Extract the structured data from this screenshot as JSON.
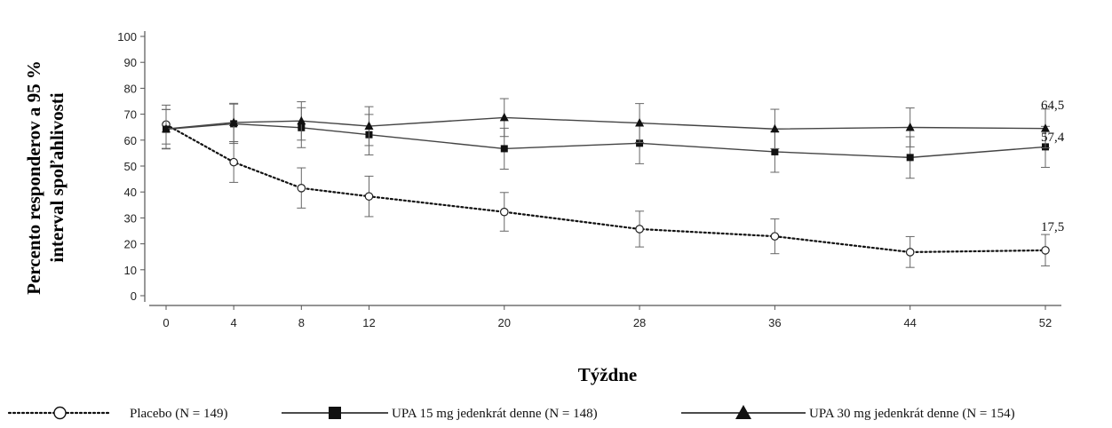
{
  "chart_data": {
    "type": "line",
    "title": "",
    "xlabel": "Týždne",
    "ylabel_line1": "Percento responderov a 95 %",
    "ylabel_line2": "interval spoľahlivosti",
    "x": [
      0,
      4,
      8,
      12,
      20,
      28,
      36,
      44,
      52
    ],
    "x_ticks": [
      "0",
      "4",
      "8",
      "12",
      "20",
      "28",
      "36",
      "44",
      "52"
    ],
    "y_ticks": [
      "0",
      "10",
      "20",
      "30",
      "40",
      "50",
      "60",
      "70",
      "80",
      "90",
      "100"
    ],
    "ylim": [
      0,
      100
    ],
    "grid": false,
    "legend_position": "bottom",
    "series": [
      {
        "name": "Placebo (N = 149)",
        "marker": "open-circle",
        "line_style": "dotted",
        "values": [
          66.0,
          51.5,
          41.5,
          38.3,
          32.3,
          25.7,
          22.9,
          16.8,
          17.5
        ],
        "ci_lower": [
          58.5,
          43.7,
          33.8,
          30.5,
          24.9,
          18.8,
          16.2,
          10.9,
          11.5
        ],
        "ci_upper": [
          73.5,
          59.4,
          49.3,
          46.1,
          39.8,
          32.6,
          29.6,
          22.8,
          23.6
        ],
        "end_label": "17,5"
      },
      {
        "name": "UPA 15 mg jedenkrát denne (N = 148)",
        "marker": "filled-square",
        "line_style": "solid",
        "values": [
          64.2,
          66.3,
          64.8,
          62.1,
          56.7,
          58.8,
          55.5,
          53.3,
          57.4
        ],
        "ci_lower": [
          56.6,
          58.7,
          57.1,
          54.3,
          48.8,
          50.9,
          47.6,
          45.3,
          49.5
        ],
        "ci_upper": [
          71.8,
          73.9,
          72.5,
          69.9,
          64.6,
          66.7,
          63.4,
          61.3,
          65.3
        ],
        "end_label": "57,4"
      },
      {
        "name": "UPA 30 mg jedenkrát denne (N = 154)",
        "marker": "filled-triangle",
        "line_style": "solid",
        "values": [
          64.3,
          66.8,
          67.4,
          65.4,
          68.7,
          66.6,
          64.3,
          64.9,
          64.5
        ],
        "ci_lower": [
          56.8,
          59.4,
          60.0,
          57.9,
          61.4,
          59.1,
          56.7,
          57.4,
          57.0
        ],
        "ci_upper": [
          71.8,
          74.2,
          74.8,
          72.9,
          76.0,
          74.1,
          71.9,
          72.4,
          72.0
        ],
        "end_label": "64,5"
      }
    ]
  }
}
